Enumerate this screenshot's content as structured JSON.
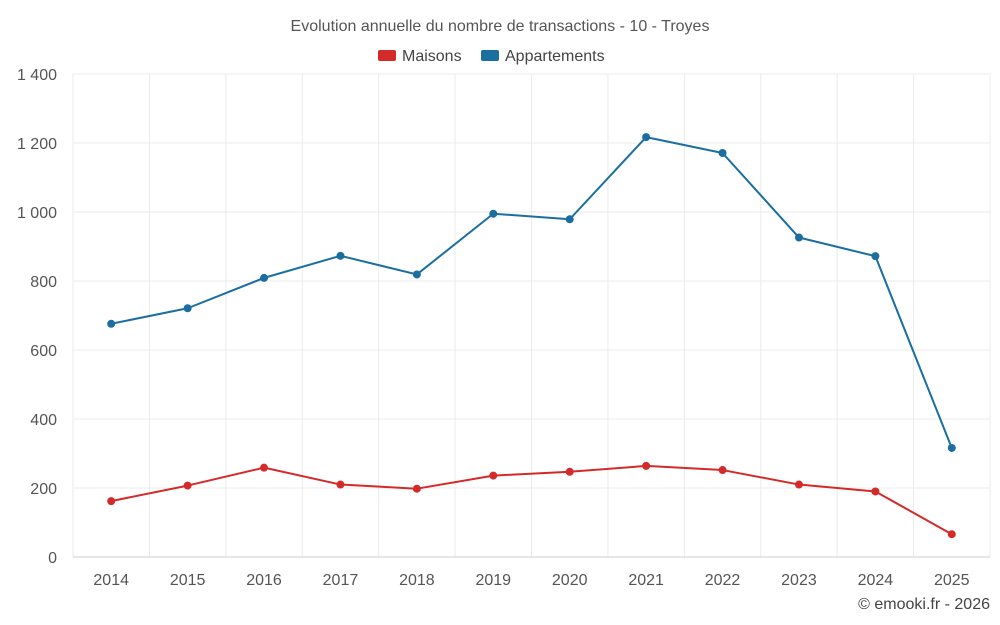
{
  "chart_data": {
    "type": "line",
    "title": "Evolution annuelle du nombre de transactions - 10 - Troyes",
    "categories": [
      "2014",
      "2015",
      "2016",
      "2017",
      "2018",
      "2019",
      "2020",
      "2021",
      "2022",
      "2023",
      "2024",
      "2025"
    ],
    "series": [
      {
        "name": "Maisons",
        "color": "#d42a2a",
        "values": [
          162,
          207,
          259,
          210,
          198,
          236,
          247,
          264,
          252,
          210,
          190,
          66
        ]
      },
      {
        "name": "Appartements",
        "color": "#1a6ea0",
        "values": [
          676,
          721,
          809,
          873,
          819,
          995,
          979,
          1217,
          1171,
          926,
          872,
          316
        ]
      }
    ],
    "ylim": [
      0,
      1400
    ],
    "yticks": [
      0,
      200,
      400,
      600,
      800,
      1000,
      1200,
      1400
    ],
    "ytick_labels": [
      "0",
      "200",
      "400",
      "600",
      "800",
      "1 000",
      "1 200",
      "1 400"
    ],
    "grid": true,
    "legend_position": "top-center",
    "xlabel": "",
    "ylabel": ""
  },
  "credit": "© emooki.fr - 2026"
}
